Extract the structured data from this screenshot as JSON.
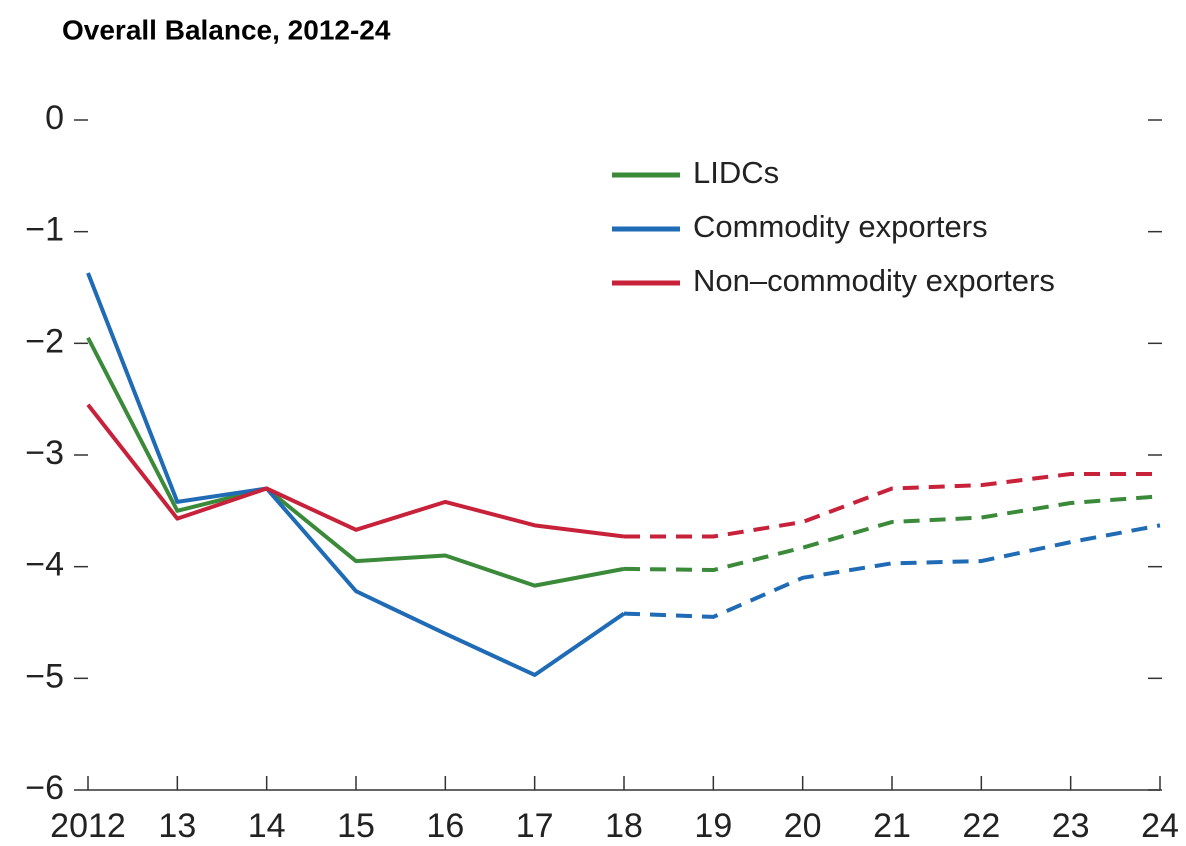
{
  "chart_data": {
    "type": "line",
    "title": "Overall Balance, 2012-24",
    "categories": [
      "2012",
      "13",
      "14",
      "15",
      "16",
      "17",
      "18",
      "19",
      "20",
      "21",
      "22",
      "23",
      "24"
    ],
    "series": [
      {
        "name": "LIDCs",
        "color": "#3a8a3a",
        "values": [
          -1.95,
          -3.5,
          -3.3,
          -3.95,
          -3.9,
          -4.17,
          -4.02,
          -4.03,
          -3.83,
          -3.6,
          -3.56,
          -3.43,
          -3.37
        ]
      },
      {
        "name": "Commodity exporters",
        "color": "#1f6bb5",
        "values": [
          -1.37,
          -3.42,
          -3.3,
          -4.22,
          -4.6,
          -4.97,
          -4.42,
          -4.45,
          -4.1,
          -3.97,
          -3.95,
          -3.78,
          -3.63
        ]
      },
      {
        "name": "Non–commodity exporters",
        "color": "#c8213a",
        "values": [
          -2.55,
          -3.57,
          -3.3,
          -3.67,
          -3.42,
          -3.63,
          -3.73,
          -3.73,
          -3.6,
          -3.3,
          -3.27,
          -3.17,
          -3.17
        ]
      }
    ],
    "dashed_from": "18",
    "ylim": [
      -6,
      0
    ],
    "yticks": [
      0,
      {
        "value": -1,
        "label": "−1"
      },
      {
        "value": -2,
        "label": "−2"
      },
      {
        "value": -3,
        "label": "−3"
      },
      {
        "value": -4,
        "label": "−4"
      },
      {
        "value": -5,
        "label": "−5"
      },
      {
        "value": -6,
        "label": "−6"
      }
    ],
    "grid": false,
    "legend": "top-right"
  }
}
